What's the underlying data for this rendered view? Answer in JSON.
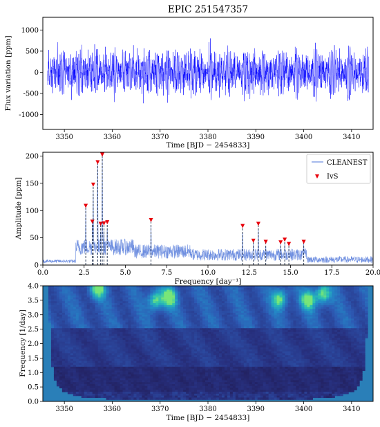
{
  "title": "EPIC 251547357",
  "colors": {
    "lightcurve": "#0000ff",
    "cleanest": "#6f8fe0",
    "ivs_marker": "#e8000b",
    "stem": "#2b3a55",
    "axis": "#000000"
  },
  "chart_data": [
    {
      "type": "line",
      "name": "light-curve",
      "title": "EPIC 251547357",
      "xlabel": "Time [BJD − 2454833]",
      "ylabel": "Flux variation [ppm]",
      "xlim": [
        3345.5,
        3414.5
      ],
      "ylim": [
        -1350,
        1300
      ],
      "xticks": [
        3350,
        3360,
        3370,
        3380,
        3390,
        3400,
        3410
      ],
      "yticks": [
        -1000,
        -500,
        0,
        500,
        1000
      ],
      "x_range_of_data": [
        3346.5,
        3413.6
      ],
      "typical_amplitude_ppm": 400,
      "peak_amplitude_ppm": 1150,
      "dominant_frequencies_per_day": [
        3.32,
        3.6,
        3.05,
        2.6,
        6.55,
        13.05,
        12.1
      ],
      "dominant_amplitudes_ppm": [
        186,
        200,
        145,
        106,
        80,
        73,
        69
      ],
      "series": [
        {
          "color": "#0000ff"
        }
      ]
    },
    {
      "type": "line",
      "name": "periodogram",
      "xlabel": "Frequency [day⁻¹]",
      "ylabel": "Amplitude [ppm]",
      "xlim": [
        0.0,
        20.0
      ],
      "ylim": [
        0,
        207
      ],
      "xticks": [
        0.0,
        2.5,
        5.0,
        7.5,
        10.0,
        12.5,
        15.0,
        17.5,
        20.0
      ],
      "yticks": [
        0,
        50,
        100,
        150,
        200
      ],
      "legend_position": "top-right",
      "series": [
        {
          "name": "CLEANEST",
          "style": "line",
          "color": "#6f8fe0"
        },
        {
          "name": "IvS",
          "style": "marker",
          "marker": "triangle-down",
          "color": "#e8000b",
          "points": [
            {
              "x": 2.6,
              "y": 106
            },
            {
              "x": 3.0,
              "y": 77
            },
            {
              "x": 3.05,
              "y": 145
            },
            {
              "x": 3.32,
              "y": 186
            },
            {
              "x": 3.5,
              "y": 73
            },
            {
              "x": 3.6,
              "y": 200
            },
            {
              "x": 3.7,
              "y": 74
            },
            {
              "x": 3.9,
              "y": 76
            },
            {
              "x": 6.55,
              "y": 80
            },
            {
              "x": 12.1,
              "y": 69
            },
            {
              "x": 12.75,
              "y": 42
            },
            {
              "x": 13.05,
              "y": 73
            },
            {
              "x": 13.5,
              "y": 40
            },
            {
              "x": 14.4,
              "y": 39
            },
            {
              "x": 14.65,
              "y": 44
            },
            {
              "x": 14.9,
              "y": 36
            },
            {
              "x": 15.8,
              "y": 40
            }
          ]
        }
      ]
    },
    {
      "type": "heatmap",
      "name": "wavelet",
      "xlabel": "Time [BJD − 2454833]",
      "ylabel": "Frequency [1/day]",
      "xlim": [
        3345.5,
        3414.5
      ],
      "ylim": [
        0.0,
        4.0
      ],
      "xticks": [
        3350,
        3360,
        3370,
        3380,
        3390,
        3400,
        3410
      ],
      "yticks": [
        0.0,
        0.5,
        1.0,
        1.5,
        2.0,
        2.5,
        3.0,
        3.5,
        4.0
      ],
      "colormap": "viridis-like",
      "bright_band_frequencies": [
        3.0,
        3.6
      ],
      "notable_hotspots": [
        {
          "x": 3357,
          "y": 3.9
        },
        {
          "x": 3369,
          "y": 3.5
        },
        {
          "x": 3372,
          "y": 3.6
        },
        {
          "x": 3395,
          "y": 3.55
        },
        {
          "x": 3401,
          "y": 3.5
        },
        {
          "x": 3404,
          "y": 3.7
        }
      ]
    }
  ]
}
